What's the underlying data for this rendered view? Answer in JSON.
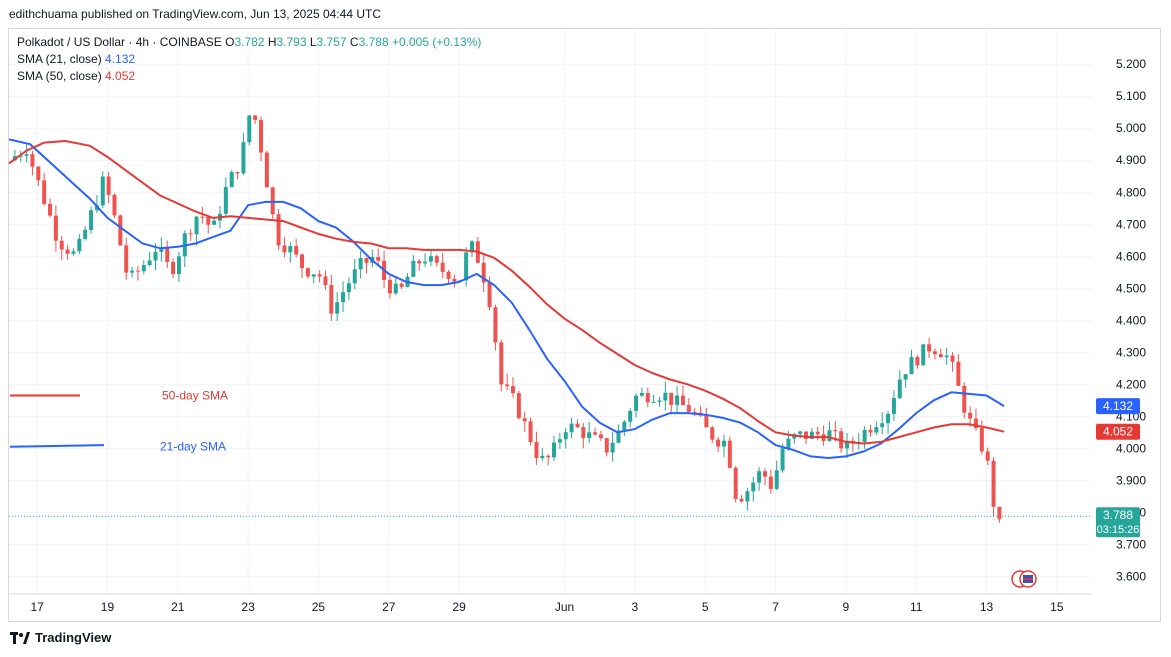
{
  "credit": "edithchuama published on TradingView.com, Jun 13, 2025 04:44 UTC",
  "legend": {
    "symbol": "Polkadot / US Dollar · 4h · COINBASE",
    "o_label": "O",
    "o_value": "3.782",
    "h_label": "H",
    "h_value": "3.793",
    "l_label": "L",
    "l_value": "3.757",
    "c_label": "C",
    "c_value": "3.788",
    "change": "+0.005 (+0.13%)",
    "sma21_label": "SMA (21, close)",
    "sma21_value": "4.132",
    "sma50_label": "SMA (50, close)",
    "sma50_value": "4.052"
  },
  "footer": {
    "brand": "TradingView"
  },
  "colors": {
    "up": "#26a69a",
    "down": "#ef5350",
    "sma21": "#2962ff",
    "sma50": "#e53935",
    "grid": "#f0f3fa"
  },
  "chart_data": {
    "type": "candlestick",
    "interval": "4h",
    "y_ticks": [
      "5.200",
      "5.100",
      "5.000",
      "4.900",
      "4.800",
      "4.700",
      "4.600",
      "4.500",
      "4.400",
      "4.300",
      "4.200",
      "4.100",
      "4.000",
      "3.900",
      "3.800",
      "3.700",
      "3.600"
    ],
    "ylim": [
      3.545,
      5.31
    ],
    "x_ticks": [
      "17",
      "19",
      "21",
      "23",
      "25",
      "27",
      "29",
      "Jun",
      "3",
      "5",
      "7",
      "9",
      "11",
      "13",
      "15"
    ],
    "x_tick_day_index": [
      0,
      2,
      4,
      6,
      8,
      10,
      12,
      15,
      17,
      19,
      21,
      23,
      25,
      27,
      29
    ],
    "xlim_day_index": [
      -0.8,
      30
    ],
    "candles_per_day": 6,
    "annotations": [
      {
        "text": "50-day SMA",
        "color": "#e53935",
        "line_y": [
          4.165,
          4.165
        ]
      },
      {
        "text": "21-day SMA",
        "color": "#2962ff",
        "line_y": [
          4.005,
          4.01
        ]
      }
    ],
    "price_labels": [
      {
        "series": "21",
        "value": 4.132,
        "text": "4.132",
        "color": "#2962ff"
      },
      {
        "series": "50",
        "value": 4.052,
        "text": "4.052",
        "color": "#e53935"
      },
      {
        "series": "last",
        "value": 3.788,
        "text": "3.788",
        "countdown": "03:15:26",
        "color": "#26a69a"
      }
    ],
    "close_path": [
      [
        -0.8,
        4.9
      ],
      [
        -0.3,
        4.94
      ],
      [
        0,
        4.84
      ],
      [
        0.6,
        4.65
      ],
      [
        1.1,
        4.6
      ],
      [
        1.5,
        4.72
      ],
      [
        1.9,
        4.84
      ],
      [
        2.2,
        4.72
      ],
      [
        2.6,
        4.52
      ],
      [
        3.0,
        4.57
      ],
      [
        3.4,
        4.63
      ],
      [
        3.8,
        4.55
      ],
      [
        4.2,
        4.66
      ],
      [
        4.6,
        4.74
      ],
      [
        5.0,
        4.68
      ],
      [
        5.4,
        4.82
      ],
      [
        5.8,
        4.9
      ],
      [
        6.1,
        5.08
      ],
      [
        6.4,
        4.92
      ],
      [
        6.8,
        4.66
      ],
      [
        7.2,
        4.62
      ],
      [
        7.6,
        4.56
      ],
      [
        8.0,
        4.55
      ],
      [
        8.4,
        4.43
      ],
      [
        8.8,
        4.51
      ],
      [
        9.2,
        4.57
      ],
      [
        9.6,
        4.6
      ],
      [
        9.9,
        4.52
      ],
      [
        10.3,
        4.48
      ],
      [
        10.6,
        4.55
      ],
      [
        11.0,
        4.6
      ],
      [
        11.4,
        4.56
      ],
      [
        11.7,
        4.55
      ],
      [
        12.0,
        4.52
      ],
      [
        12.3,
        4.64
      ],
      [
        12.6,
        4.58
      ],
      [
        12.9,
        4.45
      ],
      [
        13.2,
        4.2
      ],
      [
        13.6,
        4.14
      ],
      [
        14.0,
        4.04
      ],
      [
        14.3,
        3.96
      ],
      [
        14.6,
        3.97
      ],
      [
        15.0,
        4.07
      ],
      [
        15.4,
        4.06
      ],
      [
        15.8,
        4.03
      ],
      [
        16.2,
        4.0
      ],
      [
        16.6,
        4.06
      ],
      [
        17.0,
        4.16
      ],
      [
        17.4,
        4.17
      ],
      [
        17.8,
        4.17
      ],
      [
        18.2,
        4.14
      ],
      [
        18.6,
        4.12
      ],
      [
        19.0,
        4.06
      ],
      [
        19.3,
        4.03
      ],
      [
        19.6,
        4.02
      ],
      [
        19.9,
        3.84
      ],
      [
        20.2,
        3.87
      ],
      [
        20.6,
        3.93
      ],
      [
        20.9,
        3.88
      ],
      [
        21.2,
        4.0
      ],
      [
        21.6,
        4.04
      ],
      [
        22.0,
        4.04
      ],
      [
        22.5,
        4.05
      ],
      [
        23.0,
        4.0
      ],
      [
        23.4,
        4.04
      ],
      [
        23.8,
        4.08
      ],
      [
        24.2,
        4.12
      ],
      [
        24.6,
        4.24
      ],
      [
        25.0,
        4.28
      ],
      [
        25.4,
        4.32
      ],
      [
        25.8,
        4.3
      ],
      [
        26.0,
        4.26
      ],
      [
        26.3,
        4.15
      ],
      [
        26.6,
        4.06
      ],
      [
        26.9,
        4.0
      ],
      [
        27.1,
        3.92
      ],
      [
        27.3,
        3.74
      ],
      [
        27.5,
        3.788
      ]
    ],
    "series": [
      {
        "name": "SMA (21, close)",
        "color": "#2962ff",
        "points": [
          [
            -0.8,
            4.965
          ],
          [
            -0.2,
            4.95
          ],
          [
            0.5,
            4.88
          ],
          [
            1.0,
            4.83
          ],
          [
            1.5,
            4.78
          ],
          [
            2.0,
            4.72
          ],
          [
            2.5,
            4.68
          ],
          [
            3.0,
            4.64
          ],
          [
            3.5,
            4.625
          ],
          [
            4.0,
            4.63
          ],
          [
            4.5,
            4.64
          ],
          [
            5.0,
            4.66
          ],
          [
            5.5,
            4.68
          ],
          [
            6.0,
            4.76
          ],
          [
            6.5,
            4.77
          ],
          [
            7.0,
            4.77
          ],
          [
            7.5,
            4.75
          ],
          [
            8.0,
            4.71
          ],
          [
            8.5,
            4.69
          ],
          [
            9.0,
            4.645
          ],
          [
            9.5,
            4.59
          ],
          [
            10.0,
            4.545
          ],
          [
            10.5,
            4.52
          ],
          [
            11.0,
            4.51
          ],
          [
            11.5,
            4.51
          ],
          [
            12.0,
            4.52
          ],
          [
            12.5,
            4.545
          ],
          [
            13.0,
            4.51
          ],
          [
            13.5,
            4.455
          ],
          [
            14.0,
            4.37
          ],
          [
            14.5,
            4.28
          ],
          [
            15.0,
            4.21
          ],
          [
            15.5,
            4.13
          ],
          [
            16.0,
            4.08
          ],
          [
            16.5,
            4.05
          ],
          [
            17.0,
            4.06
          ],
          [
            17.5,
            4.09
          ],
          [
            18.0,
            4.11
          ],
          [
            18.5,
            4.11
          ],
          [
            19.0,
            4.105
          ],
          [
            19.5,
            4.095
          ],
          [
            20.0,
            4.08
          ],
          [
            20.5,
            4.05
          ],
          [
            21.0,
            4.01
          ],
          [
            21.5,
            3.995
          ],
          [
            22.0,
            3.975
          ],
          [
            22.5,
            3.97
          ],
          [
            23.0,
            3.975
          ],
          [
            23.5,
            3.99
          ],
          [
            24.0,
            4.015
          ],
          [
            24.5,
            4.06
          ],
          [
            25.0,
            4.11
          ],
          [
            25.5,
            4.15
          ],
          [
            26.0,
            4.175
          ],
          [
            26.5,
            4.17
          ],
          [
            27.0,
            4.165
          ],
          [
            27.5,
            4.132
          ]
        ]
      },
      {
        "name": "SMA (50, close)",
        "color": "#e53935",
        "points": [
          [
            -0.8,
            4.89
          ],
          [
            -0.3,
            4.93
          ],
          [
            0.2,
            4.955
          ],
          [
            0.8,
            4.96
          ],
          [
            1.5,
            4.945
          ],
          [
            2.0,
            4.91
          ],
          [
            2.5,
            4.87
          ],
          [
            3.0,
            4.83
          ],
          [
            3.5,
            4.79
          ],
          [
            4.0,
            4.765
          ],
          [
            4.5,
            4.74
          ],
          [
            5.0,
            4.72
          ],
          [
            5.5,
            4.725
          ],
          [
            6.0,
            4.72
          ],
          [
            6.5,
            4.715
          ],
          [
            7.0,
            4.71
          ],
          [
            7.5,
            4.69
          ],
          [
            8.0,
            4.67
          ],
          [
            8.5,
            4.655
          ],
          [
            9.0,
            4.645
          ],
          [
            9.5,
            4.64
          ],
          [
            10.0,
            4.625
          ],
          [
            10.5,
            4.625
          ],
          [
            11.0,
            4.62
          ],
          [
            11.5,
            4.62
          ],
          [
            12.0,
            4.62
          ],
          [
            12.5,
            4.615
          ],
          [
            13.0,
            4.595
          ],
          [
            13.5,
            4.555
          ],
          [
            14.0,
            4.505
          ],
          [
            14.5,
            4.45
          ],
          [
            15.0,
            4.405
          ],
          [
            15.5,
            4.37
          ],
          [
            16.0,
            4.33
          ],
          [
            16.5,
            4.295
          ],
          [
            17.0,
            4.26
          ],
          [
            17.5,
            4.235
          ],
          [
            18.0,
            4.215
          ],
          [
            18.5,
            4.2
          ],
          [
            19.0,
            4.18
          ],
          [
            19.5,
            4.155
          ],
          [
            20.0,
            4.125
          ],
          [
            20.5,
            4.085
          ],
          [
            21.0,
            4.05
          ],
          [
            21.5,
            4.04
          ],
          [
            22.0,
            4.035
          ],
          [
            22.5,
            4.035
          ],
          [
            23.0,
            4.02
          ],
          [
            23.5,
            4.015
          ],
          [
            24.0,
            4.02
          ],
          [
            24.5,
            4.035
          ],
          [
            25.0,
            4.05
          ],
          [
            25.5,
            4.065
          ],
          [
            26.0,
            4.075
          ],
          [
            26.5,
            4.075
          ],
          [
            27.0,
            4.065
          ],
          [
            27.5,
            4.052
          ]
        ]
      }
    ]
  }
}
